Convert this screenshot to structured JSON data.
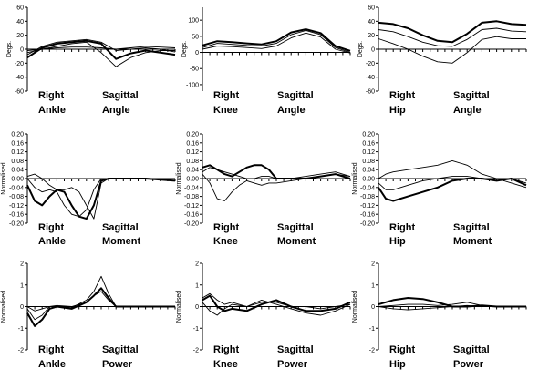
{
  "chart_data": [
    {
      "type": "line",
      "ylabel": "Degs.",
      "ylim": [
        -60,
        60
      ],
      "yticks": [
        "60",
        "40",
        "20",
        "0",
        "-20",
        "-40",
        "-60"
      ],
      "caption": {
        "side": "Right",
        "joint": "Ankle",
        "plane": "Sagittal",
        "measure": "Angle"
      },
      "x": [
        0,
        10,
        20,
        30,
        40,
        50,
        60,
        70,
        80,
        90,
        100
      ],
      "series": [
        {
          "values": [
            -12,
            2,
            8,
            10,
            12,
            8,
            -14,
            -6,
            -2,
            -5,
            -8
          ],
          "stroke": "thick"
        },
        {
          "values": [
            -8,
            4,
            10,
            12,
            14,
            10,
            -2,
            0,
            2,
            0,
            -4
          ],
          "stroke": "thin"
        },
        {
          "values": [
            -5,
            0,
            4,
            8,
            10,
            -5,
            -25,
            -12,
            -5,
            -2,
            -2
          ],
          "stroke": "thin"
        },
        {
          "values": [
            -2,
            0,
            2,
            3,
            3,
            2,
            0,
            2,
            4,
            3,
            2
          ],
          "stroke": "thin"
        }
      ]
    },
    {
      "type": "line",
      "ylabel": "Degs.",
      "ylim": [
        -120,
        140
      ],
      "yticks": [
        "100",
        "50",
        "0",
        "-50",
        "-100"
      ],
      "caption": {
        "side": "Right",
        "joint": "Knee",
        "plane": "Sagittal",
        "measure": "Angle"
      },
      "x": [
        0,
        10,
        20,
        30,
        40,
        50,
        60,
        70,
        80,
        90,
        100
      ],
      "series": [
        {
          "values": [
            22,
            35,
            32,
            28,
            25,
            35,
            62,
            72,
            60,
            20,
            5
          ],
          "stroke": "thick"
        },
        {
          "values": [
            15,
            28,
            25,
            22,
            20,
            28,
            55,
            68,
            55,
            15,
            0
          ],
          "stroke": "thin"
        },
        {
          "values": [
            10,
            20,
            18,
            15,
            12,
            20,
            45,
            60,
            48,
            10,
            -2
          ],
          "stroke": "thin"
        }
      ]
    },
    {
      "type": "line",
      "ylabel": "Degs.",
      "ylim": [
        -60,
        60
      ],
      "yticks": [
        "60",
        "40",
        "20",
        "0",
        "-20",
        "-40",
        "-60"
      ],
      "caption": {
        "side": "Right",
        "joint": "Hip",
        "plane": "Sagittal",
        "measure": "Angle"
      },
      "x": [
        0,
        10,
        20,
        30,
        40,
        50,
        60,
        70,
        80,
        90,
        100
      ],
      "series": [
        {
          "values": [
            38,
            36,
            30,
            20,
            12,
            10,
            22,
            38,
            40,
            36,
            35
          ],
          "stroke": "thick"
        },
        {
          "values": [
            28,
            25,
            18,
            10,
            5,
            4,
            14,
            28,
            30,
            26,
            25
          ],
          "stroke": "thin"
        },
        {
          "values": [
            15,
            8,
            0,
            -10,
            -18,
            -20,
            -5,
            14,
            18,
            15,
            15
          ],
          "stroke": "thin"
        }
      ]
    },
    {
      "type": "line",
      "ylabel": "Normalised",
      "ylim": [
        -0.2,
        0.2
      ],
      "yticks": [
        "0.20",
        "0.16",
        "0.12",
        "0.08",
        "0.04",
        "0.00",
        "-0.04",
        "-0.08",
        "-0.12",
        "-0.16",
        "-0.20"
      ],
      "caption": {
        "side": "Right",
        "joint": "Ankle",
        "plane": "Sagittal",
        "measure": "Moment"
      },
      "x": [
        0,
        5,
        10,
        15,
        20,
        25,
        30,
        35,
        40,
        45,
        50,
        55,
        60,
        70,
        80,
        100
      ],
      "series": [
        {
          "values": [
            -0.03,
            -0.1,
            -0.12,
            -0.08,
            -0.05,
            -0.06,
            -0.12,
            -0.17,
            -0.18,
            -0.12,
            -0.01,
            0.0,
            0.0,
            0.0,
            0.0,
            -0.01
          ],
          "stroke": "thick"
        },
        {
          "values": [
            0.0,
            -0.04,
            -0.06,
            -0.05,
            -0.06,
            -0.12,
            -0.16,
            -0.17,
            -0.14,
            -0.05,
            0.0,
            0.0,
            0.0,
            0.0,
            0.0,
            -0.01
          ],
          "stroke": "thin"
        },
        {
          "values": [
            0.01,
            0.02,
            0.0,
            -0.03,
            -0.05,
            -0.05,
            -0.04,
            -0.06,
            -0.12,
            -0.18,
            -0.02,
            0.0,
            0.0,
            0.0,
            0.0,
            -0.01
          ],
          "stroke": "thin"
        }
      ]
    },
    {
      "type": "line",
      "ylabel": "Normalised",
      "ylim": [
        -0.2,
        0.2
      ],
      "yticks": [
        "0.20",
        "0.16",
        "0.12",
        "0.08",
        "0.04",
        "0.00",
        "-0.04",
        "-0.08",
        "-0.12",
        "-0.16",
        "-0.20"
      ],
      "caption": {
        "side": "Right",
        "joint": "Knee",
        "plane": "Sagittal",
        "measure": "Moment"
      },
      "x": [
        0,
        5,
        10,
        15,
        20,
        25,
        30,
        35,
        40,
        45,
        50,
        60,
        70,
        80,
        90,
        100
      ],
      "series": [
        {
          "values": [
            0.05,
            0.06,
            0.04,
            0.02,
            0.01,
            0.03,
            0.05,
            0.06,
            0.06,
            0.04,
            0.0,
            0.0,
            0.0,
            0.01,
            0.02,
            0.0
          ],
          "stroke": "thick"
        },
        {
          "values": [
            0.03,
            0.05,
            0.04,
            0.03,
            0.02,
            0.01,
            0.0,
            0.0,
            0.01,
            0.01,
            0.0,
            0.0,
            0.01,
            0.02,
            0.03,
            0.01
          ],
          "stroke": "thin"
        },
        {
          "values": [
            0.02,
            -0.02,
            -0.09,
            -0.1,
            -0.06,
            -0.03,
            -0.01,
            -0.02,
            -0.03,
            -0.02,
            -0.02,
            -0.01,
            0.0,
            0.01,
            0.02,
            0.01
          ],
          "stroke": "thin"
        }
      ]
    },
    {
      "type": "line",
      "ylabel": "Normalised",
      "ylim": [
        -0.2,
        0.2
      ],
      "yticks": [
        "0.20",
        "0.16",
        "0.12",
        "0.08",
        "0.04",
        "0.00",
        "-0.04",
        "-0.08",
        "-0.12",
        "-0.16",
        "-0.20"
      ],
      "caption": {
        "side": "Right",
        "joint": "Hip",
        "plane": "Sagittal",
        "measure": "Moment"
      },
      "x": [
        0,
        5,
        10,
        20,
        30,
        40,
        50,
        60,
        70,
        80,
        90,
        100
      ],
      "series": [
        {
          "values": [
            -0.04,
            -0.09,
            -0.1,
            -0.08,
            -0.06,
            -0.04,
            -0.01,
            0.0,
            0.0,
            -0.01,
            0.0,
            -0.03
          ],
          "stroke": "thick"
        },
        {
          "values": [
            0.0,
            0.02,
            0.03,
            0.04,
            0.05,
            0.06,
            0.08,
            0.06,
            0.02,
            0.0,
            -0.02,
            -0.04
          ],
          "stroke": "thin"
        },
        {
          "values": [
            -0.02,
            -0.05,
            -0.05,
            -0.03,
            -0.01,
            0.0,
            0.01,
            0.01,
            0.0,
            0.0,
            0.0,
            -0.02
          ],
          "stroke": "thin"
        }
      ]
    },
    {
      "type": "line",
      "ylabel": "Normalised",
      "ylim": [
        -2,
        2
      ],
      "yticks": [
        "2",
        "1",
        "0",
        "-1",
        "-2"
      ],
      "caption": {
        "side": "Right",
        "joint": "Ankle",
        "plane": "Sagittal",
        "measure": "Power"
      },
      "x": [
        0,
        5,
        10,
        15,
        20,
        30,
        40,
        45,
        50,
        55,
        60,
        70,
        80,
        90,
        100
      ],
      "series": [
        {
          "values": [
            -0.3,
            -0.9,
            -0.6,
            -0.1,
            0.0,
            -0.1,
            0.2,
            0.5,
            0.85,
            0.4,
            0.0,
            0.0,
            0.0,
            0.0,
            0.0
          ],
          "stroke": "thick"
        },
        {
          "values": [
            0.0,
            -0.2,
            -0.1,
            0.0,
            0.0,
            -0.05,
            0.3,
            0.7,
            1.4,
            0.6,
            0.0,
            0.0,
            0.0,
            0.0,
            0.0
          ],
          "stroke": "thin"
        },
        {
          "values": [
            -0.1,
            -0.6,
            -0.4,
            0.0,
            0.05,
            0.0,
            0.2,
            0.5,
            0.7,
            0.3,
            0.0,
            0.0,
            0.0,
            0.0,
            0.0
          ],
          "stroke": "thin"
        }
      ]
    },
    {
      "type": "line",
      "ylabel": "Normalised",
      "ylim": [
        -2,
        2
      ],
      "yticks": [
        "2",
        "1",
        "0",
        "-1",
        "-2"
      ],
      "caption": {
        "side": "Right",
        "joint": "Knee",
        "plane": "Sagittal",
        "measure": "Power"
      },
      "x": [
        0,
        5,
        10,
        15,
        20,
        30,
        40,
        50,
        60,
        70,
        80,
        90,
        100
      ],
      "series": [
        {
          "values": [
            0.3,
            0.5,
            0.0,
            -0.2,
            -0.1,
            -0.2,
            0.1,
            0.3,
            0.0,
            -0.2,
            -0.2,
            -0.1,
            0.2
          ],
          "stroke": "thick"
        },
        {
          "values": [
            0.2,
            -0.2,
            -0.4,
            -0.1,
            0.1,
            0.0,
            0.3,
            0.1,
            -0.1,
            -0.3,
            -0.4,
            -0.2,
            0.1
          ],
          "stroke": "thin"
        },
        {
          "values": [
            0.4,
            0.6,
            0.3,
            0.1,
            0.2,
            0.0,
            0.2,
            0.2,
            0.0,
            0.0,
            -0.1,
            0.0,
            0.1
          ],
          "stroke": "thin"
        }
      ]
    },
    {
      "type": "line",
      "ylabel": "Normalised",
      "ylim": [
        -2,
        2
      ],
      "yticks": [
        "2",
        "1",
        "0",
        "-1",
        "-2"
      ],
      "caption": {
        "side": "Right",
        "joint": "Hip",
        "plane": "Sagittal",
        "measure": "Power"
      },
      "x": [
        0,
        10,
        20,
        30,
        40,
        50,
        60,
        70,
        80,
        90,
        100
      ],
      "series": [
        {
          "values": [
            0.1,
            0.3,
            0.4,
            0.35,
            0.2,
            0.0,
            0.0,
            0.05,
            0.0,
            0.0,
            0.0
          ],
          "stroke": "thick"
        },
        {
          "values": [
            0.0,
            0.05,
            0.1,
            0.1,
            0.05,
            0.1,
            0.2,
            0.05,
            0.0,
            0.0,
            0.0
          ],
          "stroke": "thin"
        },
        {
          "values": [
            0.0,
            -0.1,
            -0.15,
            -0.1,
            -0.05,
            0.0,
            0.05,
            0.0,
            0.0,
            0.0,
            0.0
          ],
          "stroke": "thin"
        }
      ]
    }
  ]
}
